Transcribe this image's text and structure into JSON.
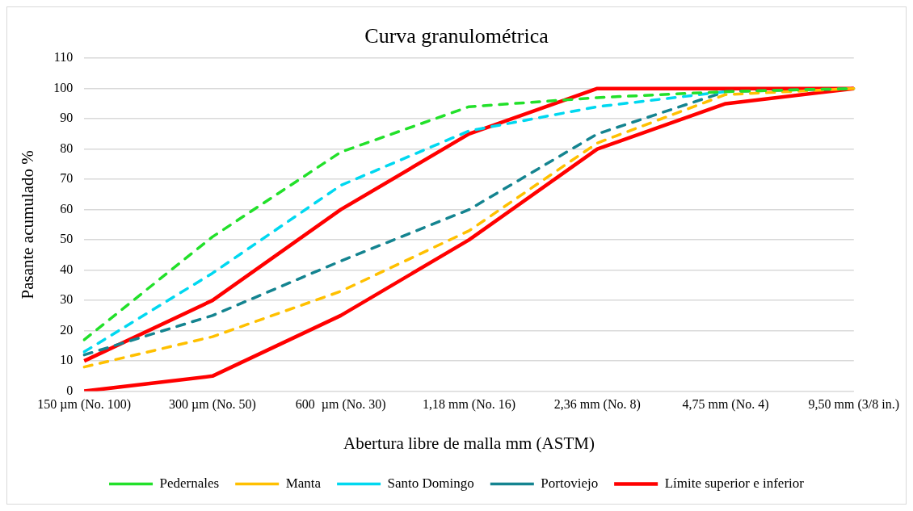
{
  "chart_data": {
    "type": "line",
    "title": "Curva granulométrica",
    "xlabel": "Abertura libre de malla mm (ASTM)",
    "ylabel": "Pasante acumulado %",
    "categories": [
      "150 µm (No. 100)",
      "300 µm (No. 50)",
      "600  µm (No. 30)",
      "1,18 mm (No. 16)",
      "2,36 mm (No. 8)",
      "4,75 mm (No. 4)",
      "9,50 mm (3/8 in.)"
    ],
    "series": [
      {
        "name": "Pedernales",
        "color": "#22e02a",
        "line_style": "dashed",
        "values": [
          17,
          51,
          79,
          94,
          97,
          99,
          100
        ]
      },
      {
        "name": "Manta",
        "color": "#ffc000",
        "line_style": "dashed",
        "values": [
          8,
          18,
          33,
          53,
          82,
          98,
          100
        ]
      },
      {
        "name": "Santo Domingo",
        "color": "#00d8f0",
        "line_style": "dashed",
        "values": [
          13,
          39,
          68,
          86,
          94,
          99,
          null
        ]
      },
      {
        "name": "Portoviejo",
        "color": "#148490",
        "line_style": "dashed",
        "values": [
          12,
          25,
          43,
          60,
          85,
          99,
          100
        ]
      },
      {
        "name": "Límite superior e inferior",
        "color": "#ff0000",
        "line_style": "solid",
        "values": [
          10,
          30,
          60,
          85,
          100,
          100,
          100
        ]
      },
      {
        "color": "#ff0000",
        "line_style": "solid",
        "values": [
          0,
          5,
          25,
          50,
          80,
          95,
          100
        ]
      }
    ],
    "ylim": [
      0,
      110
    ],
    "yticks": [
      0,
      10,
      20,
      30,
      40,
      50,
      60,
      70,
      80,
      90,
      100,
      110
    ],
    "grid": "y",
    "legend": "bottom",
    "marker": "none"
  }
}
